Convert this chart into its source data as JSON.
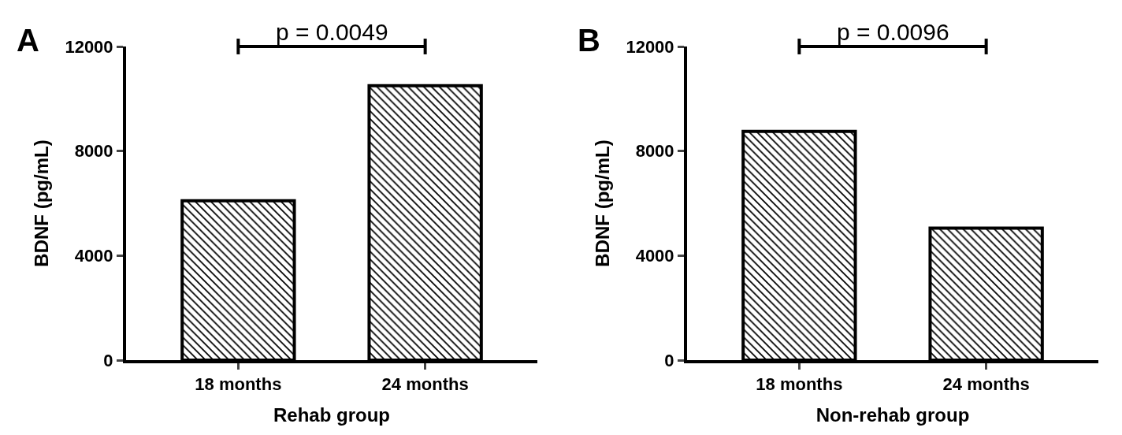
{
  "chart_data": [
    {
      "type": "bar",
      "title": "A",
      "categories": [
        "18 months",
        "24 months"
      ],
      "values": [
        6100,
        10500
      ],
      "color": "#000000",
      "xlabel": "Rehab group",
      "ylabel": "BDNF (pg/mL)",
      "ylim": [
        0,
        12000
      ],
      "yticks": [
        0,
        4000,
        8000,
        12000
      ],
      "grid": false,
      "annotations": [
        "p = 0.0049"
      ]
    },
    {
      "type": "bar",
      "title": "B",
      "categories": [
        "18 months",
        "24 months"
      ],
      "values": [
        8750,
        5050
      ],
      "color": "#000000",
      "xlabel": "Non-rehab group",
      "ylabel": "BDNF (pg/mL)",
      "ylim": [
        0,
        12000
      ],
      "yticks": [
        0,
        4000,
        8000,
        12000
      ],
      "grid": false,
      "annotations": [
        "p = 0.0096"
      ]
    }
  ]
}
